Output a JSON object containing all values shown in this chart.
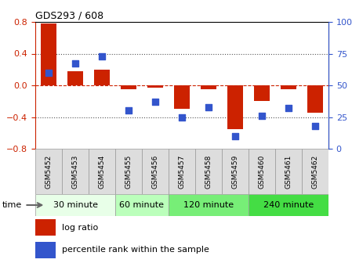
{
  "title": "GDS293 / 608",
  "samples": [
    "GSM5452",
    "GSM5453",
    "GSM5454",
    "GSM5455",
    "GSM5456",
    "GSM5457",
    "GSM5458",
    "GSM5459",
    "GSM5460",
    "GSM5461",
    "GSM5462"
  ],
  "log_ratio": [
    0.78,
    0.18,
    0.2,
    -0.05,
    -0.03,
    -0.3,
    -0.05,
    -0.55,
    -0.2,
    -0.05,
    -0.35
  ],
  "percentile": [
    60,
    67,
    73,
    30,
    37,
    25,
    33,
    10,
    26,
    32,
    18
  ],
  "bar_color": "#cc2200",
  "dot_color": "#3355cc",
  "ylim_left": [
    -0.8,
    0.8
  ],
  "ylim_right": [
    0,
    100
  ],
  "yticks_left": [
    -0.8,
    -0.4,
    0.0,
    0.4,
    0.8
  ],
  "yticks_right": [
    0,
    25,
    50,
    75,
    100
  ],
  "zero_line_color": "#cc2200",
  "grid_color": "#555555",
  "groups": [
    {
      "label": "30 minute",
      "start": 0,
      "end": 3,
      "color": "#e8ffe8"
    },
    {
      "label": "60 minute",
      "start": 3,
      "end": 5,
      "color": "#bbffbb"
    },
    {
      "label": "120 minute",
      "start": 5,
      "end": 8,
      "color": "#77ee77"
    },
    {
      "label": "240 minute",
      "start": 8,
      "end": 11,
      "color": "#44dd44"
    }
  ],
  "sample_box_color": "#dddddd",
  "time_label": "time",
  "legend_log_ratio": "log ratio",
  "legend_percentile": "percentile rank within the sample",
  "plot_bg": "#ffffff"
}
